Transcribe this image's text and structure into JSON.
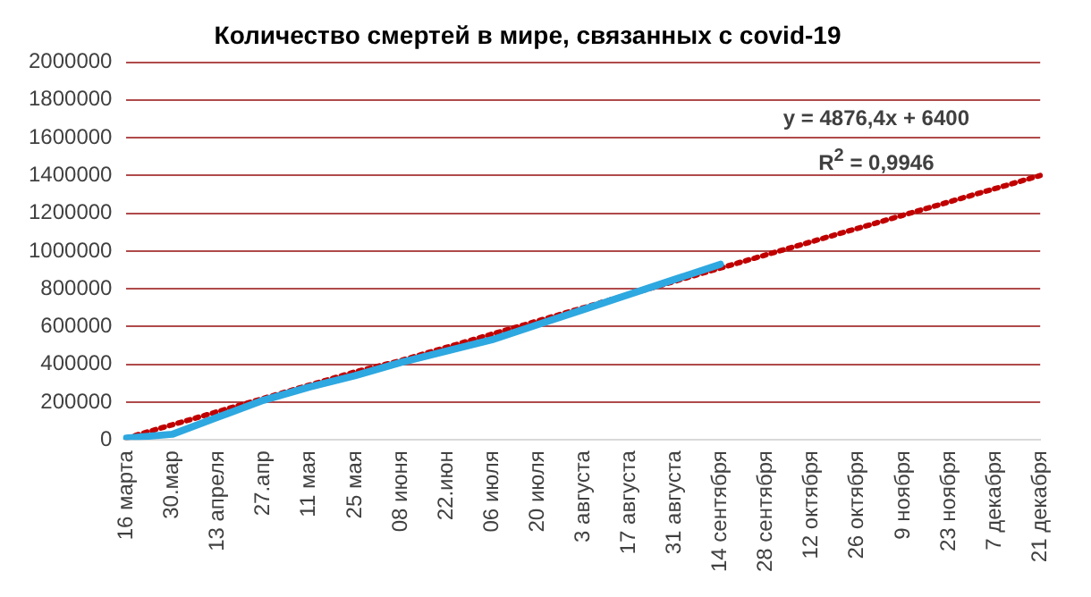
{
  "chart_data": {
    "type": "line",
    "title": "Количество смертей в мире, связанных с covid-19",
    "categories": [
      "16 марта",
      "30.мар",
      "13 апреля",
      "27.апр",
      "11 мая",
      "25 мая",
      "08 июня",
      "22.июн",
      "06 июля",
      "20 июля",
      "3 августа",
      "17 августа",
      "31 августа",
      "14 сентября",
      "28 сентября",
      "12 октября",
      "26 октября",
      "9 ноября",
      "23 ноября",
      "7 декабря",
      "21 декабря"
    ],
    "series": [
      {
        "color": "#2ea8e0",
        "values": [
          10000,
          30000,
          120000,
          210000,
          280000,
          340000,
          410000,
          470000,
          530000,
          610000,
          690000,
          770000,
          850000,
          930000,
          null,
          null,
          null,
          null,
          null,
          null,
          null
        ]
      },
      {
        "type": "line",
        "color": "#c00000",
        "line_style": "dotted",
        "values": [
          10000,
          80000,
          150000,
          220000,
          290000,
          360000,
          420000,
          490000,
          560000,
          630000,
          700000,
          770000,
          840000,
          910000,
          980000,
          1050000,
          1120000,
          1190000,
          1260000,
          1330000,
          1400000
        ]
      }
    ],
    "ylim": [
      0,
      2000000
    ],
    "yticks": [
      0,
      200000,
      400000,
      600000,
      800000,
      1000000,
      1200000,
      1400000,
      1600000,
      1800000,
      2000000
    ],
    "grid": "y",
    "legend": false,
    "marker": "none",
    "annotations": [
      "y = 4876,4x + 6400",
      "R$^{2}$ = 0,9946"
    ]
  }
}
